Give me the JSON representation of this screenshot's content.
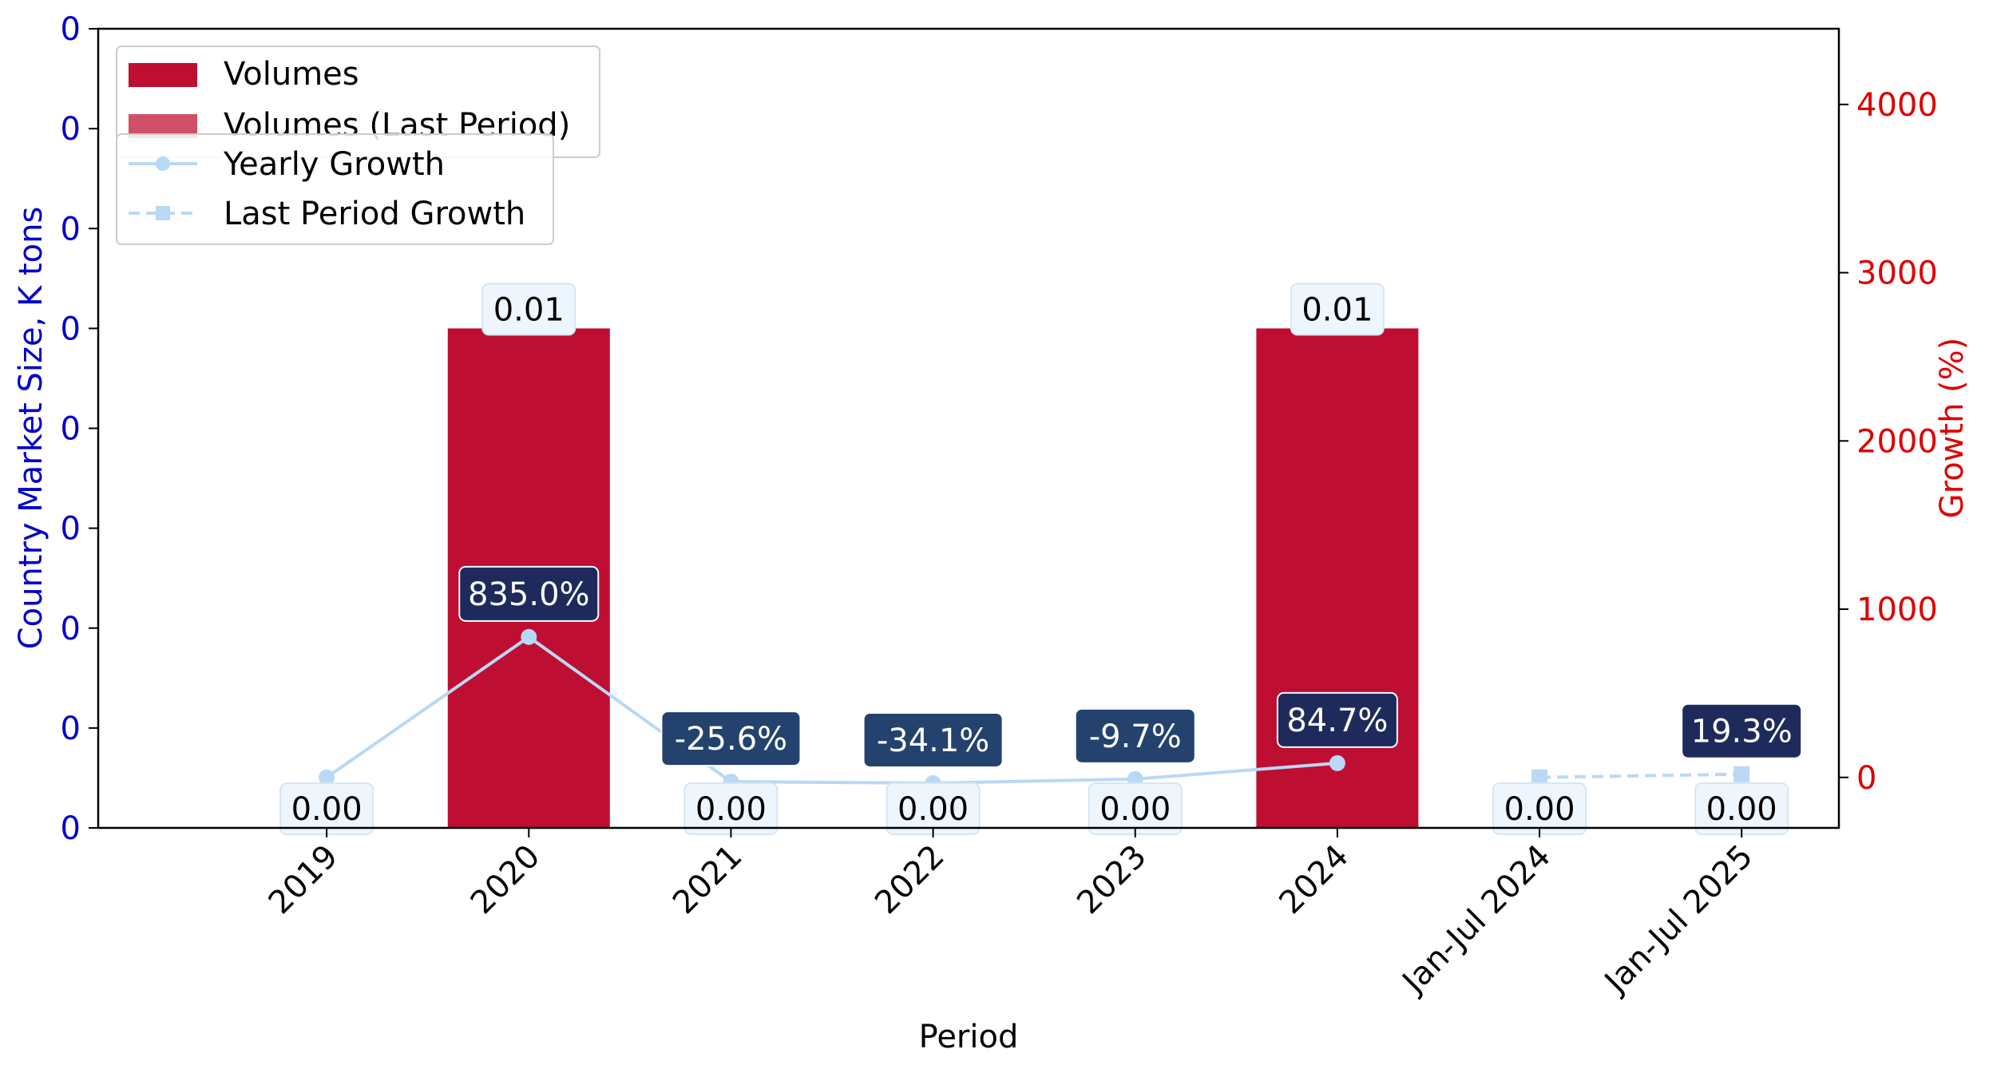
{
  "chart_data": {
    "type": "bar",
    "title": "",
    "xlabel": "Period",
    "ylabel_left": "Country Market Size, K tons",
    "ylabel_right": "Growth (%)",
    "categories": [
      "2019",
      "2020",
      "2021",
      "2022",
      "2023",
      "2024",
      "Jan-Jul 2024",
      "Jan-Jul 2025"
    ],
    "left_axis": {
      "ylim": [
        0,
        0.012
      ],
      "tick_values": [
        0,
        0.0015,
        0.003,
        0.0045,
        0.006,
        0.0075,
        0.009,
        0.0105,
        0.012
      ],
      "tick_labels": [
        "0",
        "0",
        "0",
        "0",
        "0",
        "0",
        "0",
        "0",
        "0"
      ]
    },
    "right_axis": {
      "ylim": [
        -300,
        4450
      ],
      "ticks": [
        0,
        1000,
        2000,
        3000,
        4000
      ]
    },
    "series": [
      {
        "name": "Volumes",
        "kind": "bar",
        "color": "#be0e31",
        "values": [
          0,
          0.0075,
          0,
          0,
          0,
          0.0075,
          null,
          null
        ],
        "labels": [
          "0.00",
          "0.01",
          "0.00",
          "0.00",
          "0.00",
          "0.01",
          null,
          null
        ]
      },
      {
        "name": "Volumes (Last Period)",
        "kind": "bar",
        "color": "#cf5068",
        "values": [
          null,
          null,
          null,
          null,
          null,
          null,
          0,
          0
        ],
        "labels": [
          null,
          null,
          null,
          null,
          null,
          null,
          "0.00",
          "0.00"
        ]
      },
      {
        "name": "Yearly Growth",
        "kind": "line",
        "color": "#b9d8f6",
        "style": "solid",
        "marker": "circle",
        "values": [
          0,
          835.0,
          -25.6,
          -34.1,
          -9.7,
          84.7,
          null,
          null
        ],
        "labels": [
          null,
          "835.0%",
          "-25.6%",
          "-34.1%",
          "-9.7%",
          "84.7%",
          null,
          null
        ]
      },
      {
        "name": "Last Period Growth",
        "kind": "line",
        "color": "#b9d8f6",
        "style": "dashed",
        "marker": "square",
        "values": [
          null,
          null,
          null,
          null,
          null,
          null,
          0,
          19.3
        ],
        "labels": [
          null,
          null,
          null,
          null,
          null,
          null,
          null,
          "19.3%"
        ]
      }
    ],
    "legend": [
      {
        "name": "Volumes",
        "position": "top-left"
      },
      {
        "name": "Volumes (Last Period)",
        "position": "top-left"
      },
      {
        "name": "Yearly Growth",
        "position": "top-left"
      },
      {
        "name": "Last Period Growth",
        "position": "top-left"
      }
    ],
    "colors": {
      "left_axis": "#0000cc",
      "right_axis": "#dd0000",
      "positive_label_bg": "#1f2a5c",
      "negative_label_bg": "#23426e",
      "value_label_bg": "#eef6fd"
    },
    "grid": false
  }
}
